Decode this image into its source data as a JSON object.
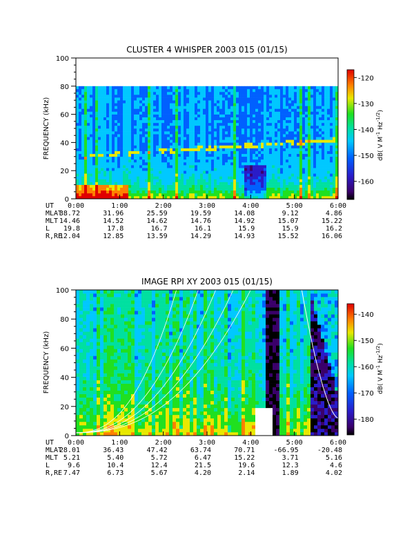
{
  "chart_data": [
    {
      "type": "heatmap",
      "title": "CLUSTER 4 WHISPER 2003 015 (01/15)",
      "ylabel": "FREQUENCY (kHz)",
      "ylim": [
        0,
        100
      ],
      "yticks": [
        "0",
        "20",
        "40",
        "60",
        "80",
        "100"
      ],
      "xlim": [
        "0:00",
        "6:00"
      ],
      "xticks": [
        "0:00",
        "1:00",
        "2:00",
        "3:00",
        "4:00",
        "5:00",
        "6:00"
      ],
      "data_fmax_khz": 80,
      "colorbar": {
        "label": "dB( V M^-1 Hz^-1/2 )",
        "ticks": [
          "-120",
          "-130",
          "-140",
          "-150",
          "-160"
        ],
        "range": [
          -167,
          -117
        ]
      },
      "ephemeris": {
        "rows": [
          {
            "label": "UT",
            "values": [
              "0:00",
              "1:00",
              "2:00",
              "3:00",
              "4:00",
              "5:00",
              "6:00"
            ]
          },
          {
            "label": "MLAT",
            "values": [
              "38.72",
              "31.96",
              "25.59",
              "19.59",
              "14.08",
              "9.12",
              "4.86"
            ]
          },
          {
            "label": "MLT",
            "values": [
              "14.46",
              "14.52",
              "14.62",
              "14.76",
              "14.92",
              "15.07",
              "15.22"
            ]
          },
          {
            "label": "L",
            "values": [
              "19.8",
              "17.8",
              "16.7",
              "16.1",
              "15.9",
              "15.9",
              "16.2"
            ]
          },
          {
            "label": "R,RE",
            "values": [
              "12.04",
              "12.85",
              "13.59",
              "14.29",
              "14.93",
              "15.52",
              "16.06"
            ]
          }
        ]
      }
    },
    {
      "type": "heatmap",
      "title": "IMAGE RPI XY 2003 015 (01/15)",
      "ylabel": "FREQUENCY (kHz)",
      "ylim": [
        0,
        100
      ],
      "yticks": [
        "0",
        "20",
        "40",
        "60",
        "80",
        "100"
      ],
      "xlim": [
        "0:00",
        "6:00"
      ],
      "xticks": [
        "0:00",
        "1:00",
        "2:00",
        "3:00",
        "4:00",
        "5:00",
        "6:00"
      ],
      "colorbar": {
        "label": "dB( V M^-1 Hz^-1/2 )",
        "ticks": [
          "-140",
          "-150",
          "-160",
          "-170",
          "-180"
        ],
        "range": [
          -186,
          -136
        ]
      },
      "ephemeris": {
        "rows": [
          {
            "label": "UT",
            "values": [
              "0:00",
              "1:00",
              "2:00",
              "3:00",
              "4:00",
              "5:00",
              "6:00"
            ]
          },
          {
            "label": "MLAT",
            "values": [
              "28.01",
              "36.43",
              "47.42",
              "63.74",
              "70.71",
              "-66.95",
              "-20.48"
            ]
          },
          {
            "label": "MLT",
            "values": [
              "5.21",
              "5.40",
              "5.72",
              "6.47",
              "15.22",
              "3.71",
              "5.16"
            ]
          },
          {
            "label": "L",
            "values": [
              "9.6",
              "10.4",
              "12.4",
              "21.5",
              "19.6",
              "12.3",
              "4.6"
            ]
          },
          {
            "label": "R,RE",
            "values": [
              "7.47",
              "6.73",
              "5.67",
              "4.20",
              "2.14",
              "1.89",
              "4.02"
            ]
          }
        ]
      }
    }
  ]
}
